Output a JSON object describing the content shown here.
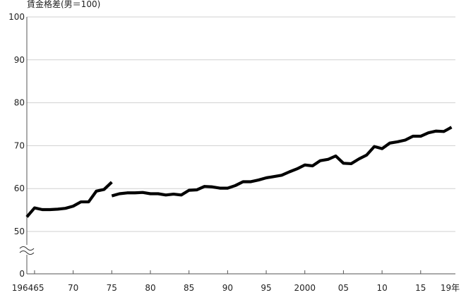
{
  "chart_data": {
    "type": "line",
    "title": "",
    "ylabel": "賃金格差(男＝100)",
    "xlabel": "",
    "ylim": [
      50,
      100
    ],
    "xlim": [
      1964,
      2019.5
    ],
    "y_axis_break": true,
    "y_ticks": [
      {
        "value": 0,
        "label": "0"
      },
      {
        "value": 50,
        "label": "50"
      },
      {
        "value": 60,
        "label": "60"
      },
      {
        "value": 70,
        "label": "70"
      },
      {
        "value": 80,
        "label": "80"
      },
      {
        "value": 90,
        "label": "90"
      },
      {
        "value": 100,
        "label": "100"
      }
    ],
    "x_tick_labels": [
      {
        "x": 1964,
        "label": "1964"
      },
      {
        "x": 1965,
        "label": "65"
      },
      {
        "x": 1970,
        "label": "70"
      },
      {
        "x": 1975,
        "label": "75"
      },
      {
        "x": 1980,
        "label": "80"
      },
      {
        "x": 1985,
        "label": "85"
      },
      {
        "x": 1990,
        "label": "90"
      },
      {
        "x": 1995,
        "label": "95"
      },
      {
        "x": 2000,
        "label": "2000"
      },
      {
        "x": 2005,
        "label": "05"
      },
      {
        "x": 2010,
        "label": "10"
      },
      {
        "x": 2015,
        "label": "15"
      },
      {
        "x": 2019,
        "label": "19年"
      }
    ],
    "series": [
      {
        "x": [
          1964,
          1965,
          1966,
          1967,
          1968,
          1969,
          1970,
          1971,
          1972,
          1973,
          1974,
          1975
        ],
        "values": [
          53.4,
          55.5,
          55.1,
          55.1,
          55.2,
          55.4,
          55.9,
          56.9,
          56.9,
          59.4,
          59.8,
          61.5
        ]
      },
      {
        "x": [
          1975,
          1976,
          1977,
          1978,
          1979,
          1980,
          1981,
          1982,
          1983,
          1984,
          1985,
          1986,
          1987,
          1988,
          1989,
          1990,
          1991,
          1992,
          1993,
          1994,
          1995,
          1996,
          1997,
          1998,
          1999,
          2000,
          2001,
          2002,
          2003,
          2004,
          2005,
          2006,
          2007,
          2008,
          2009,
          2010,
          2011,
          2012,
          2013,
          2014,
          2015,
          2016,
          2017,
          2018,
          2019
        ],
        "values": [
          58.3,
          58.8,
          59.0,
          59.0,
          59.1,
          58.8,
          58.8,
          58.5,
          58.7,
          58.5,
          59.6,
          59.7,
          60.5,
          60.4,
          60.1,
          60.1,
          60.7,
          61.6,
          61.6,
          62.0,
          62.5,
          62.8,
          63.1,
          63.9,
          64.6,
          65.5,
          65.3,
          66.5,
          66.8,
          67.6,
          65.9,
          65.8,
          66.9,
          67.8,
          69.8,
          69.3,
          70.6,
          70.9,
          71.3,
          72.2,
          72.2,
          73.0,
          73.4,
          73.3,
          74.3
        ]
      }
    ],
    "color": "#000000"
  }
}
